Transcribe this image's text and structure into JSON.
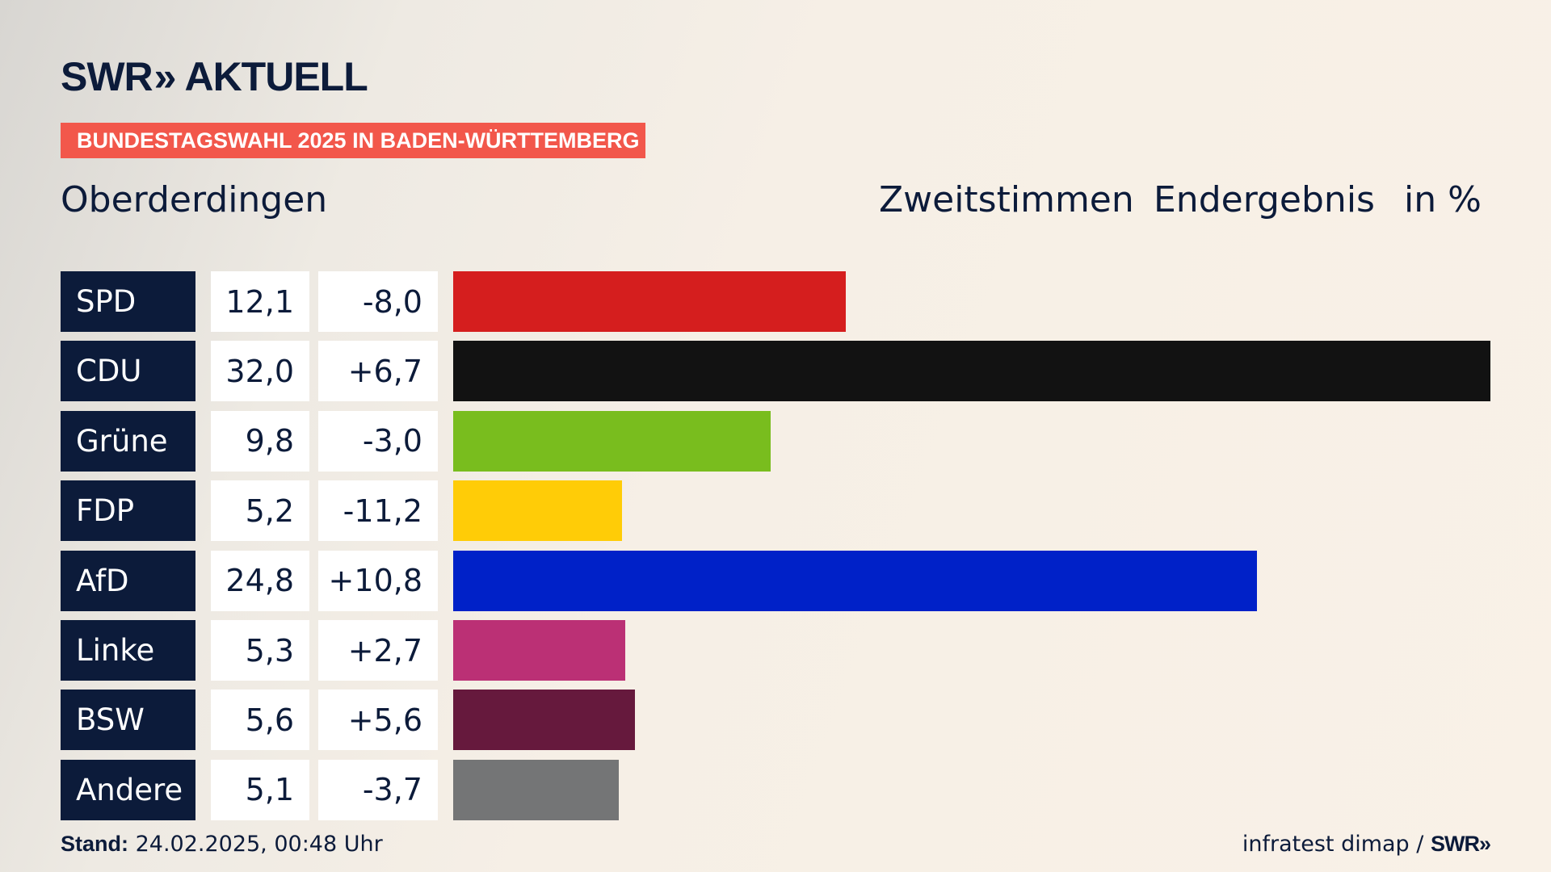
{
  "brand": {
    "logo_left": "SWR",
    "logo_arrows": "»",
    "logo_right": "AKTUELL"
  },
  "badge": "BUNDESTAGSWAHL 2025 IN BADEN-WÜRTTEMBERG",
  "region": "Oberderdingen",
  "header": {
    "vote_type": "Zweitstimmen",
    "result_type": "Endergebnis",
    "unit": "in %"
  },
  "footer": {
    "stand_label": "Stand:",
    "stand_value": "24.02.2025, 00:48 Uhr",
    "source": "infratest dimap /",
    "source_brand": "SWR»"
  },
  "chart_data": {
    "type": "bar",
    "orientation": "horizontal",
    "categories": [
      "SPD",
      "CDU",
      "Grüne",
      "FDP",
      "AfD",
      "Linke",
      "BSW",
      "Andere"
    ],
    "values": [
      12.1,
      32.0,
      9.8,
      5.2,
      24.8,
      5.3,
      5.6,
      5.1
    ],
    "value_labels": [
      "12,1",
      "32,0",
      "9,8",
      "5,2",
      "24,8",
      "5,3",
      "5,6",
      "5,1"
    ],
    "diff_labels": [
      "-8,0",
      "+6,7",
      "-3,0",
      "-11,2",
      "+10,8",
      "+2,7",
      "+5,6",
      "-3,7"
    ],
    "colors": [
      "#d51e1e",
      "#121212",
      "#79bd1e",
      "#ffcc07",
      "#0021c8",
      "#bb3075",
      "#66193d",
      "#747576"
    ],
    "xlim": [
      0,
      32.0
    ]
  }
}
